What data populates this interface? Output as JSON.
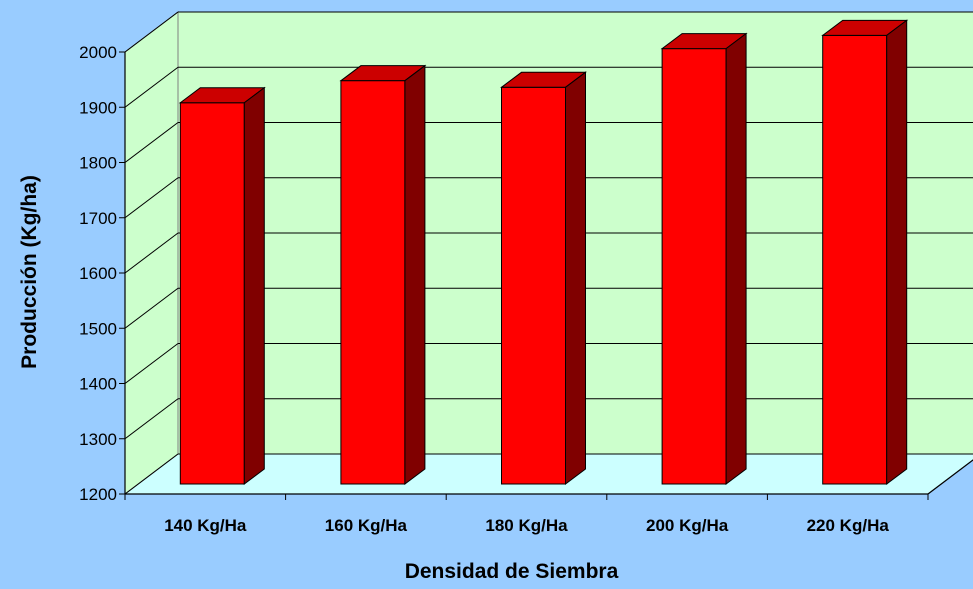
{
  "chart_data": {
    "type": "bar",
    "categories": [
      "140 Kg/Ha",
      "160 Kg/Ha",
      "180 Kg/Ha",
      "200 Kg/Ha",
      "220 Kg/Ha"
    ],
    "values": [
      1890,
      1930,
      1918,
      1988,
      2012
    ],
    "xlabel": "Densidad de Siembra",
    "ylabel": "Producción (Kg/ha)",
    "ylim": [
      1200,
      2000
    ],
    "yticks": [
      "1200",
      "1300",
      "1400",
      "1500",
      "1600",
      "1700",
      "1800",
      "1900",
      "2000"
    ],
    "grid": true,
    "three_d": true
  },
  "colors": {
    "background": "#99CCFF",
    "back_wall": "#CCFFCC",
    "floor": "#CCFFFF",
    "bar_front": "#FF0000",
    "bar_top": "#CC0000",
    "bar_side": "#800000"
  }
}
